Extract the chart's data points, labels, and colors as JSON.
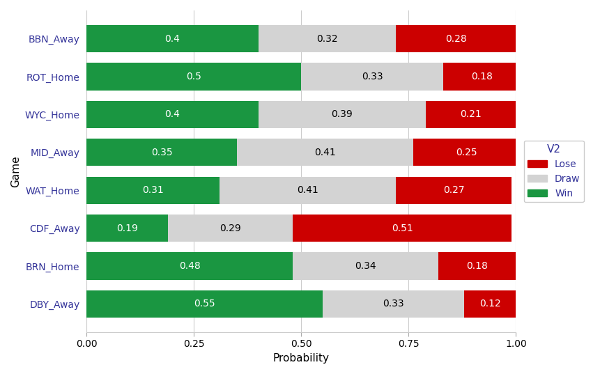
{
  "games": [
    "BBN_Away",
    "ROT_Home",
    "WYC_Home",
    "MID_Away",
    "WAT_Home",
    "CDF_Away",
    "BRN_Home",
    "DBY_Away"
  ],
  "win": [
    0.4,
    0.5,
    0.4,
    0.35,
    0.31,
    0.19,
    0.48,
    0.55
  ],
  "draw": [
    0.32,
    0.33,
    0.39,
    0.41,
    0.41,
    0.29,
    0.34,
    0.33
  ],
  "lose": [
    0.28,
    0.18,
    0.21,
    0.25,
    0.27,
    0.51,
    0.18,
    0.12
  ],
  "win_color": "#1a9641",
  "draw_color": "#d3d3d3",
  "lose_color": "#cc0000",
  "bar_height": 0.72,
  "xlabel": "Probability",
  "ylabel": "Game",
  "xlim": [
    0.0,
    1.0
  ],
  "xticks": [
    0.0,
    0.25,
    0.5,
    0.75,
    1.0
  ],
  "xtick_labels": [
    "0.00",
    "0.25",
    "0.50",
    "0.75",
    "1.00"
  ],
  "legend_title": "V2",
  "legend_labels": [
    "Lose",
    "Draw",
    "Win"
  ],
  "legend_colors": [
    "#cc0000",
    "#d3d3d3",
    "#1a9641"
  ],
  "background_color": "#ffffff",
  "grid_color": "#cccccc",
  "label_fontsize": 11,
  "tick_fontsize": 10,
  "value_fontsize": 10
}
